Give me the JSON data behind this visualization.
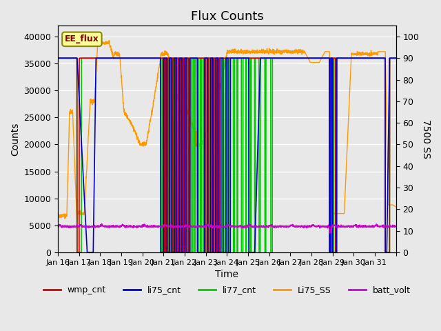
{
  "title": "Flux Counts",
  "ylabel_left": "Counts",
  "ylabel_right": "7500 SS",
  "xlabel": "Time",
  "ylim_left": [
    0,
    42000
  ],
  "ylim_right": [
    0,
    105
  ],
  "background_color": "#e8e8e8",
  "plot_bg_color": "#e8e8e8",
  "annotation_text": "EE_flux",
  "x_tick_labels": [
    "Jan 16",
    "Jan 17",
    "Jan 18",
    "Jan 19",
    "Jan 20",
    "Jan 21",
    "Jan 22",
    "Jan 23",
    "Jan 24",
    "Jan 25",
    "Jan 26",
    "Jan 27",
    "Jan 28",
    "Jan 29",
    "Jan 30",
    "Jan 31",
    ""
  ],
  "wmp_cnt_color": "#cc0000",
  "li75_cnt_color": "#0000cc",
  "li77_cnt_color": "#00cc00",
  "li75_ss_color": "#ff9900",
  "batt_volt_color": "#cc00cc",
  "title_fontsize": 13,
  "axis_label_fontsize": 10,
  "tick_fontsize": 9
}
